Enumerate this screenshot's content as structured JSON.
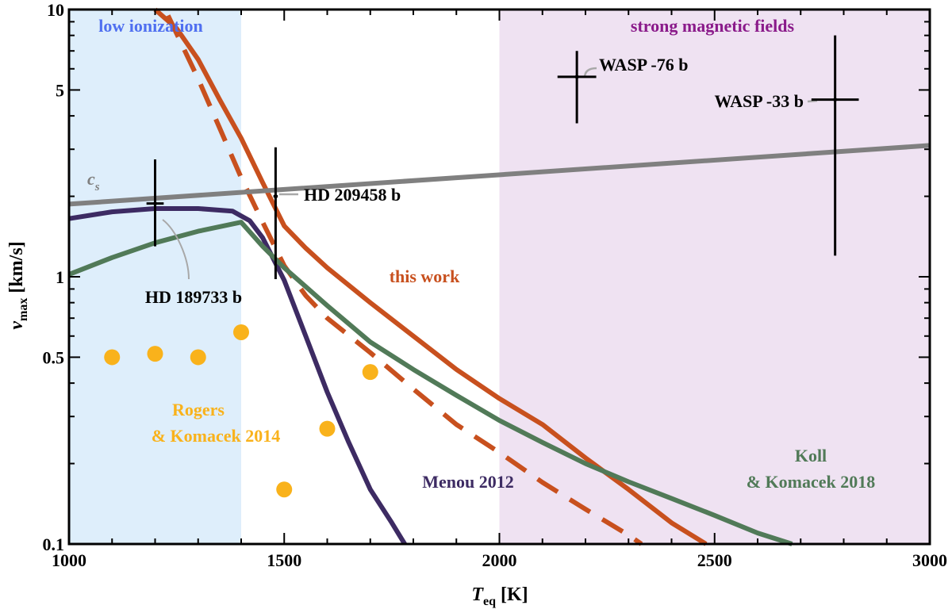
{
  "chart_data": {
    "type": "line",
    "x_scale": "linear",
    "y_scale": "log",
    "xlim": [
      1000,
      3000
    ],
    "ylim": [
      0.1,
      10
    ],
    "xlabel": {
      "main": "T",
      "sub": "eq",
      "unit": " [K]"
    },
    "ylabel": {
      "main": "v",
      "sub": "max",
      "unit": " [km/s]"
    },
    "x_ticks": [
      {
        "value": 1000,
        "label": "1000"
      },
      {
        "value": 1500,
        "label": "1500"
      },
      {
        "value": 2000,
        "label": "2000"
      },
      {
        "value": 2500,
        "label": "2500"
      },
      {
        "value": 3000,
        "label": "3000"
      }
    ],
    "y_ticks": [
      {
        "value": 0.1,
        "label": "0.1"
      },
      {
        "value": 0.5,
        "label": "0.5"
      },
      {
        "value": 1,
        "label": "1"
      },
      {
        "value": 5,
        "label": "5"
      },
      {
        "value": 10,
        "label": "10"
      }
    ],
    "regions": [
      {
        "name": "low ionization",
        "x_start": 1000,
        "x_end": 1400,
        "color": "#deeefb",
        "label_color": "#4f6ff0"
      },
      {
        "name": "strong magnetic fields",
        "x_start": 2000,
        "x_end": 3000,
        "color": "#efe2f2",
        "label_color": "#8a1a8a"
      }
    ],
    "series": [
      {
        "name": "this work",
        "color": "#c8501e",
        "dash": false,
        "x": [
          1200,
          1250,
          1300,
          1350,
          1400,
          1450,
          1500,
          1550,
          1600,
          1700,
          1800,
          1900,
          2000,
          2100,
          2200,
          2300,
          2400,
          2480
        ],
        "y": [
          10,
          8.5,
          6.5,
          4.6,
          3.3,
          2.25,
          1.55,
          1.28,
          1.08,
          0.8,
          0.6,
          0.45,
          0.35,
          0.28,
          0.21,
          0.16,
          0.12,
          0.1
        ]
      },
      {
        "name": "this work (dashed)",
        "color": "#c8501e",
        "dash": true,
        "x": [
          1230,
          1300,
          1350,
          1400,
          1450,
          1500,
          1550,
          1600,
          1700,
          1800,
          1900,
          2000,
          2100,
          2200,
          2300,
          2330
        ],
        "y": [
          9.5,
          5.5,
          3.6,
          2.35,
          1.6,
          1.1,
          0.85,
          0.7,
          0.52,
          0.38,
          0.28,
          0.22,
          0.17,
          0.135,
          0.108,
          0.1
        ]
      },
      {
        "name": "Menou 2012",
        "color": "#3d2b63",
        "dash": false,
        "x": [
          1000,
          1100,
          1200,
          1300,
          1380,
          1420,
          1450,
          1500,
          1550,
          1600,
          1650,
          1700,
          1750,
          1780
        ],
        "y": [
          1.65,
          1.75,
          1.8,
          1.8,
          1.76,
          1.62,
          1.4,
          0.97,
          0.6,
          0.37,
          0.24,
          0.16,
          0.12,
          0.1
        ]
      },
      {
        "name": "Koll & Komacek 2018",
        "color": "#517a58",
        "dash": false,
        "x": [
          1000,
          1100,
          1200,
          1300,
          1400,
          1450,
          1500,
          1600,
          1700,
          1800,
          1900,
          2000,
          2100,
          2200,
          2300,
          2400,
          2500,
          2600,
          2680
        ],
        "y": [
          1.02,
          1.18,
          1.34,
          1.48,
          1.6,
          1.3,
          1.08,
          0.78,
          0.57,
          0.45,
          0.36,
          0.29,
          0.24,
          0.2,
          0.171,
          0.148,
          0.128,
          0.11,
          0.1
        ]
      },
      {
        "name": "c_s",
        "color": "#808080",
        "dash": false,
        "x": [
          1000,
          3000
        ],
        "y": [
          1.87,
          3.1
        ]
      }
    ],
    "scatter": {
      "name": "Rogers & Komacek 2014",
      "color": "#f9b21b",
      "points": [
        {
          "x": 1100,
          "y": 0.5
        },
        {
          "x": 1200,
          "y": 0.515
        },
        {
          "x": 1300,
          "y": 0.5
        },
        {
          "x": 1400,
          "y": 0.62
        },
        {
          "x": 1500,
          "y": 0.16
        },
        {
          "x": 1600,
          "y": 0.27
        },
        {
          "x": 1700,
          "y": 0.44
        }
      ]
    },
    "error_points": [
      {
        "name": "HD 189733 b",
        "x": 1200,
        "y": 1.88,
        "xerr": 20,
        "y_low": 1.3,
        "y_high": 2.75
      },
      {
        "name": "HD 209458 b",
        "x": 1480,
        "y": 2.0,
        "xerr": 5,
        "y_low": 0.98,
        "y_high": 3.05
      },
      {
        "name": "WASP -76 b",
        "x": 2180,
        "y": 5.6,
        "xerr": 45,
        "y_low": 3.75,
        "y_high": 7.0
      },
      {
        "name": "WASP -33 b",
        "x": 2780,
        "y": 4.6,
        "xerr": 55,
        "y_low": 1.2,
        "y_high": 8.0
      }
    ],
    "annotations": [
      {
        "text": "this work",
        "color": "#c8501e"
      },
      {
        "text": "Menou 2012",
        "color": "#3d2b63"
      },
      {
        "text": "Koll",
        "color": "#517a58"
      },
      {
        "text": "& Komacek 2018",
        "color": "#517a58"
      },
      {
        "text": "Rogers",
        "color": "#f9b21b"
      },
      {
        "text": "& Komacek 2014",
        "color": "#f9b21b"
      },
      {
        "text": "c",
        "sub": "s",
        "color": "#808080"
      },
      {
        "text": "HD 189733 b",
        "color": "#000000"
      },
      {
        "text": "HD 209458 b",
        "color": "#000000"
      },
      {
        "text": "WASP -76 b",
        "color": "#000000"
      },
      {
        "text": "WASP -33 b",
        "color": "#000000"
      }
    ]
  }
}
